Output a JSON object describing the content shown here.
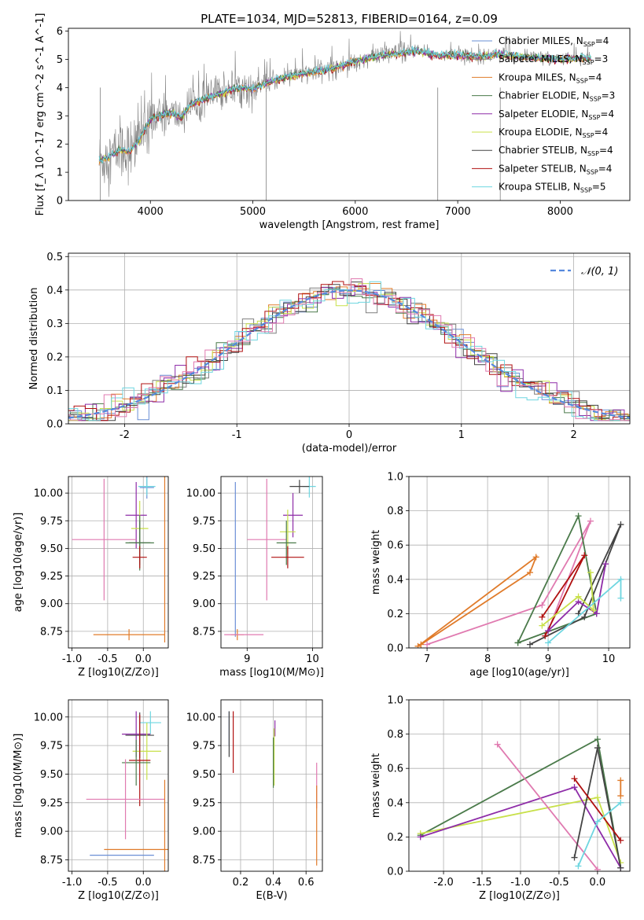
{
  "figure_title": "PLATE=1034, MJD=52813, FIBERID=0164, z=0.09",
  "colors": {
    "Chabrier MILES": "#6a8fd6",
    "Salpeter MILES": "#7f7f7f",
    "Kroupa MILES": "#e07b2a",
    "Chabrier ELODIE": "#4a7a4a",
    "Salpeter ELODIE": "#8e2ca8",
    "Kroupa ELODIE": "#c8e04a",
    "Chabrier STELIB": "#444444",
    "Salpeter STELIB": "#b01010",
    "Kroupa STELIB": "#6ed6e0",
    "extra": "#e07ab0",
    "normal": "#5588dd"
  },
  "chart_data": [
    {
      "id": "spectrum",
      "type": "line",
      "xlabel": "wavelength [Angstrom, rest frame]",
      "ylabel": "Flux [f_λ 10^-17 erg cm^-2 s^-1 A^-1]",
      "xlim": [
        3200,
        8680
      ],
      "ylim": [
        0,
        6.1
      ],
      "xticks": [
        4000,
        5000,
        6000,
        7000,
        8000
      ],
      "yticks": [
        0,
        1,
        2,
        3,
        4,
        5,
        6
      ],
      "legend_position": "upper-right",
      "legend": [
        {
          "label": "Chabrier MILES, N",
          "sub": "SSP",
          "val": "=4",
          "color": "Chabrier MILES"
        },
        {
          "label": "Salpeter MILES, N",
          "sub": "SSP",
          "val": "=3",
          "color": "Salpeter MILES"
        },
        {
          "label": "Kroupa MILES, N",
          "sub": "SSP",
          "val": "=4",
          "color": "Kroupa MILES"
        },
        {
          "label": "Chabrier ELODIE, N",
          "sub": "SSP",
          "val": "=3",
          "color": "Chabrier ELODIE"
        },
        {
          "label": "Salpeter ELODIE, N",
          "sub": "SSP",
          "val": "=4",
          "color": "Salpeter ELODIE"
        },
        {
          "label": "Kroupa ELODIE, N",
          "sub": "SSP",
          "val": "=4",
          "color": "Kroupa ELODIE"
        },
        {
          "label": "Chabrier STELIB, N",
          "sub": "SSP",
          "val": "=4",
          "color": "Chabrier STELIB"
        },
        {
          "label": "Salpeter STELIB, N",
          "sub": "SSP",
          "val": "=4",
          "color": "Salpeter STELIB"
        },
        {
          "label": "Kroupa STELIB, N",
          "sub": "SSP",
          "val": "=5",
          "color": "Kroupa STELIB"
        }
      ],
      "model_curve": {
        "x": [
          3500,
          3600,
          3700,
          3800,
          3900,
          4000,
          4100,
          4200,
          4300,
          4400,
          4500,
          4600,
          4700,
          4800,
          4900,
          5000,
          5200,
          5400,
          5600,
          5800,
          6000,
          6200,
          6400,
          6600,
          6800,
          7000,
          7200,
          7400,
          7600,
          7800,
          8000,
          8200,
          8400
        ],
        "y": [
          1.4,
          1.55,
          1.8,
          1.75,
          2.2,
          2.9,
          3.0,
          3.1,
          2.95,
          3.45,
          3.55,
          3.7,
          3.8,
          3.95,
          4.0,
          3.95,
          4.25,
          4.45,
          4.55,
          4.7,
          4.95,
          5.1,
          5.2,
          5.3,
          5.15,
          5.15,
          5.1,
          5.2,
          5.1,
          5.05,
          5.0,
          5.05,
          5.1
        ]
      }
    },
    {
      "id": "residuals",
      "type": "histogram",
      "xlabel": "(data-model)/error",
      "ylabel": "Normed distribution",
      "xlim": [
        -2.5,
        2.5
      ],
      "ylim": [
        0,
        0.51
      ],
      "xticks": [
        -2,
        -1,
        0,
        1,
        2
      ],
      "yticks": [
        0.0,
        0.1,
        0.2,
        0.3,
        0.4,
        0.5
      ],
      "normal_curve": {
        "mean": 0,
        "std": 1,
        "label": "𝒩(0, 1)"
      },
      "legend_position": "upper-right"
    },
    {
      "id": "age_vs_Z",
      "type": "errorbar",
      "xlabel": "Z [log10(Z/Z⊙)]",
      "ylabel": "age  [log10(age/yr)]",
      "xlim": [
        -1.05,
        0.35
      ],
      "ylim": [
        8.6,
        10.15
      ],
      "xticks": [
        -1.0,
        -0.5,
        0.0
      ],
      "yticks": [
        8.75,
        9.0,
        9.25,
        9.5,
        9.75,
        10.0
      ],
      "points": [
        {
          "series": "Chabrier MILES",
          "x": 0.05,
          "y": 10.05,
          "xerr": 0.1,
          "yerr": 0.1
        },
        {
          "series": "Kroupa STELIB",
          "x": 0.05,
          "y": 10.06,
          "xerr": 0.12,
          "yerr": 0.08
        },
        {
          "series": "Salpeter ELODIE",
          "x": -0.1,
          "y": 9.8,
          "xerr": 0.15,
          "yerr": 0.3
        },
        {
          "series": "Kroupa ELODIE",
          "x": -0.05,
          "y": 9.68,
          "xerr": 0.12,
          "yerr": 0.25
        },
        {
          "series": "Chabrier STELIB",
          "x": -0.05,
          "y": 9.55,
          "xerr": 0.15,
          "yerr": 0.2
        },
        {
          "series": "extra",
          "x": -0.55,
          "y": 9.58,
          "xerr": 0.45,
          "yerr": 0.55
        },
        {
          "series": "Chabrier ELODIE",
          "x": -0.05,
          "y": 9.55,
          "xerr": 0.2,
          "yerr": 0.25
        },
        {
          "series": "Salpeter STELIB",
          "x": -0.05,
          "y": 9.42,
          "xerr": 0.1,
          "yerr": 0.1
        },
        {
          "series": "Kroupa MILES",
          "x": -0.2,
          "y": 8.72,
          "xerr": 0.5,
          "yerr": 0.05
        },
        {
          "series": "Kroupa MILES",
          "x": 0.3,
          "y": 9.4,
          "xerr": 0.0,
          "yerr": 0.75
        }
      ]
    },
    {
      "id": "age_vs_mass",
      "type": "errorbar",
      "xlabel": "mass [log10(M/M⊙)]",
      "ylabel": "",
      "xlim": [
        8.6,
        10.15
      ],
      "ylim": [
        8.6,
        10.15
      ],
      "xticks": [
        9,
        10
      ],
      "yticks": [
        8.75,
        9.0,
        9.25,
        9.5,
        9.75,
        10.0
      ],
      "points": [
        {
          "series": "Kroupa STELIB",
          "x": 9.95,
          "y": 10.06,
          "xerr": 0.1,
          "yerr": 0.1
        },
        {
          "series": "Chabrier STELIB",
          "x": 9.8,
          "y": 10.06,
          "xerr": 0.15,
          "yerr": 0.06
        },
        {
          "series": "Salpeter ELODIE",
          "x": 9.7,
          "y": 9.8,
          "xerr": 0.15,
          "yerr": 0.2
        },
        {
          "series": "Kroupa ELODIE",
          "x": 9.62,
          "y": 9.65,
          "xerr": 0.12,
          "yerr": 0.2
        },
        {
          "series": "extra",
          "x": 9.3,
          "y": 9.58,
          "xerr": 0.3,
          "yerr": 0.55
        },
        {
          "series": "Chabrier ELODIE",
          "x": 9.6,
          "y": 9.55,
          "xerr": 0.15,
          "yerr": 0.2
        },
        {
          "series": "Salpeter STELIB",
          "x": 9.62,
          "y": 9.42,
          "xerr": 0.25,
          "yerr": 0.1
        },
        {
          "series": "Chabrier MILES",
          "x": 8.82,
          "y": 9.4,
          "xerr": 0.0,
          "yerr": 0.7
        },
        {
          "series": "Kroupa MILES",
          "x": 8.85,
          "y": 8.72,
          "xerr": 0.1,
          "yerr": 0.05
        },
        {
          "series": "extra",
          "x": 8.95,
          "y": 8.72,
          "xerr": 0.3,
          "yerr": 0.0
        }
      ]
    },
    {
      "id": "mass_weight_vs_age",
      "type": "line",
      "xlabel": "age  [log10(age/yr)]",
      "ylabel": "mass weight",
      "xlim": [
        6.7,
        10.35
      ],
      "ylim": [
        0,
        1.0
      ],
      "xticks": [
        7,
        8,
        9,
        10
      ],
      "yticks": [
        0.0,
        0.2,
        0.4,
        0.6,
        0.8,
        1.0
      ],
      "series": [
        {
          "name": "Kroupa MILES",
          "x": [
            6.9,
            8.7,
            8.8,
            6.85
          ],
          "y": [
            0.02,
            0.44,
            0.53,
            0.01
          ]
        },
        {
          "name": "extra",
          "x": [
            7.0,
            8.9,
            9.7,
            9.0
          ],
          "y": [
            0.02,
            0.25,
            0.74,
            0.1
          ]
        },
        {
          "name": "Chabrier ELODIE",
          "x": [
            8.5,
            9.5,
            9.8,
            8.5
          ],
          "y": [
            0.03,
            0.77,
            0.2,
            0.03
          ]
        },
        {
          "name": "Chabrier STELIB",
          "x": [
            8.7,
            9.6,
            10.2,
            9.5
          ],
          "y": [
            0.02,
            0.18,
            0.72,
            0.2
          ]
        },
        {
          "name": "Salpeter STELIB",
          "x": [
            8.95,
            9.6,
            8.9
          ],
          "y": [
            0.07,
            0.54,
            0.18
          ]
        },
        {
          "name": "Salpeter ELODIE",
          "x": [
            9.0,
            9.5,
            9.8,
            9.95
          ],
          "y": [
            0.1,
            0.27,
            0.2,
            0.49
          ]
        },
        {
          "name": "Kroupa ELODIE",
          "x": [
            8.9,
            9.5,
            9.75,
            9.7
          ],
          "y": [
            0.13,
            0.3,
            0.22,
            0.44
          ]
        },
        {
          "name": "Kroupa STELIB",
          "x": [
            9.0,
            10.2,
            10.2
          ],
          "y": [
            0.03,
            0.4,
            0.29
          ]
        }
      ]
    },
    {
      "id": "mass_vs_Z",
      "type": "errorbar",
      "xlabel": "Z [log10(Z/Z⊙)]",
      "ylabel": "mass [log10(M/M⊙)]",
      "xlim": [
        -1.05,
        0.35
      ],
      "ylim": [
        8.65,
        10.15
      ],
      "xticks": [
        -1.0,
        -0.5,
        0.0
      ],
      "yticks": [
        8.75,
        9.0,
        9.25,
        9.5,
        9.75,
        10.0
      ],
      "points": [
        {
          "series": "Kroupa STELIB",
          "x": 0.1,
          "y": 9.95,
          "xerr": 0.15,
          "yerr": 0.1
        },
        {
          "series": "Salpeter ELODIE",
          "x": -0.1,
          "y": 9.85,
          "xerr": 0.2,
          "yerr": 0.2
        },
        {
          "series": "Chabrier STELIB",
          "x": -0.05,
          "y": 9.84,
          "xerr": 0.2,
          "yerr": 0.2
        },
        {
          "series": "Kroupa ELODIE",
          "x": 0.05,
          "y": 9.7,
          "xerr": 0.2,
          "yerr": 0.25
        },
        {
          "series": "Salpeter STELIB",
          "x": -0.05,
          "y": 9.62,
          "xerr": 0.15,
          "yerr": 0.4
        },
        {
          "series": "Chabrier ELODIE",
          "x": -0.1,
          "y": 9.6,
          "xerr": 0.2,
          "yerr": 0.2
        },
        {
          "series": "extra",
          "x": -0.25,
          "y": 9.28,
          "xerr": 0.55,
          "yerr": 0.35
        },
        {
          "series": "Chabrier MILES",
          "x": -0.3,
          "y": 8.79,
          "xerr": 0.45,
          "yerr": 0.0
        },
        {
          "series": "Kroupa MILES",
          "x": -0.1,
          "y": 8.84,
          "xerr": 0.45,
          "yerr": 0.0
        },
        {
          "series": "Kroupa MILES",
          "x": 0.3,
          "y": 9.05,
          "xerr": 0.0,
          "yerr": 0.4
        }
      ]
    },
    {
      "id": "mass_vs_ebv",
      "type": "errorbar",
      "xlabel": "E(B-V)",
      "ylabel": "",
      "xlim": [
        0.08,
        0.7
      ],
      "ylim": [
        8.65,
        10.15
      ],
      "xticks": [
        0.2,
        0.4,
        0.6
      ],
      "yticks": [
        8.75,
        9.0,
        9.25,
        9.5,
        9.75,
        10.0
      ],
      "points": [
        {
          "series": "Chabrier MILES",
          "x": 0.13,
          "y": 9.9,
          "xerr": 0.0,
          "yerr": 0.15
        },
        {
          "series": "Chabrier STELIB",
          "x": 0.13,
          "y": 9.85,
          "xerr": 0.0,
          "yerr": 0.2
        },
        {
          "series": "Salpeter STELIB",
          "x": 0.155,
          "y": 9.78,
          "xerr": 0.0,
          "yerr": 0.27
        },
        {
          "series": "Salpeter ELODIE",
          "x": 0.41,
          "y": 9.9,
          "xerr": 0.0,
          "yerr": 0.07
        },
        {
          "series": "Kroupa ELODIE",
          "x": 0.405,
          "y": 9.65,
          "xerr": 0.0,
          "yerr": 0.25
        },
        {
          "series": "Chabrier ELODIE",
          "x": 0.4,
          "y": 9.6,
          "xerr": 0.0,
          "yerr": 0.22
        },
        {
          "series": "extra",
          "x": 0.665,
          "y": 9.4,
          "xerr": 0.0,
          "yerr": 0.2
        },
        {
          "series": "Kroupa MILES",
          "x": 0.665,
          "y": 9.05,
          "xerr": 0.0,
          "yerr": 0.35
        }
      ]
    },
    {
      "id": "mass_weight_vs_Z",
      "type": "line",
      "xlabel": "Z [log10(Z/Z⊙)]",
      "ylabel": "mass weight",
      "xlim": [
        -2.45,
        0.42
      ],
      "ylim": [
        0,
        1.0
      ],
      "xticks": [
        -2.0,
        -1.5,
        -1.0,
        -0.5,
        0.0
      ],
      "yticks": [
        0.0,
        0.2,
        0.4,
        0.6,
        0.8,
        1.0
      ],
      "series": [
        {
          "name": "Chabrier ELODIE",
          "x": [
            -2.3,
            0.0,
            0.3
          ],
          "y": [
            0.21,
            0.77,
            0.02
          ]
        },
        {
          "name": "Kroupa ELODIE",
          "x": [
            -2.3,
            0.0,
            0.3
          ],
          "y": [
            0.22,
            0.43,
            0.05
          ]
        },
        {
          "name": "Salpeter ELODIE",
          "x": [
            -2.3,
            -0.3,
            0.3
          ],
          "y": [
            0.2,
            0.49,
            0.02
          ]
        },
        {
          "name": "extra",
          "x": [
            -1.3,
            0.0
          ],
          "y": [
            0.74,
            0.01
          ]
        },
        {
          "name": "Chabrier STELIB",
          "x": [
            -0.3,
            0.0,
            0.3
          ],
          "y": [
            0.08,
            0.72,
            0.02
          ]
        },
        {
          "name": "Salpeter STELIB",
          "x": [
            -0.3,
            0.3
          ],
          "y": [
            0.54,
            0.18
          ]
        },
        {
          "name": "Kroupa STELIB",
          "x": [
            -0.25,
            0.0,
            0.3
          ],
          "y": [
            0.03,
            0.29,
            0.4
          ]
        },
        {
          "name": "Kroupa MILES",
          "x": [
            0.3,
            0.3
          ],
          "y": [
            0.53,
            0.44
          ]
        }
      ]
    }
  ]
}
